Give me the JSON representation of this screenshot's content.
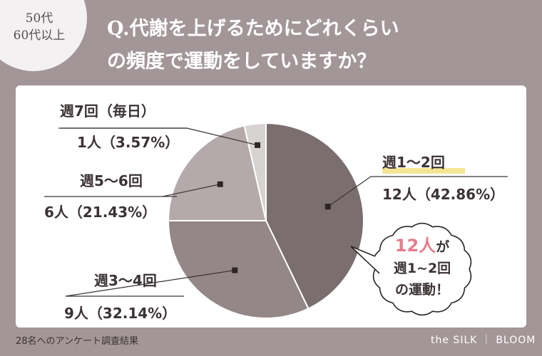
{
  "badge": {
    "line1": "50代",
    "line2": "60代以上"
  },
  "title": {
    "line1": "Q.代謝を上げるためにどれくらい",
    "line2": "の頻度で運動をしていますか？"
  },
  "chart_data": {
    "type": "pie",
    "slices": [
      {
        "name": "週1〜2回",
        "count_label": "12人（42.86%）",
        "value": 42.86,
        "color": "#7a6e6f"
      },
      {
        "name": "週3〜4回",
        "count_label": "9人（32.14%）",
        "value": 32.14,
        "color": "#948788"
      },
      {
        "name": "週5〜6回",
        "count_label": "6人（21.43%）",
        "value": 21.43,
        "color": "#b4aaab"
      },
      {
        "name": "週7回（毎日）",
        "count_label": "1人（3.57%）",
        "value": 3.57,
        "color": "#d8d3d3"
      }
    ],
    "callout": {
      "accent": "12人",
      "accent_suffix": "が",
      "line2": "週1~2回",
      "line3": "の運動！"
    }
  },
  "footer": {
    "note": "28名へのアンケート調査結果",
    "brand": "the SILK ｜ BLOOM"
  },
  "colors": {
    "background": "#a39698",
    "card": "#ffffff",
    "highlight": "#f3e28a",
    "accent": "#e57d8d"
  }
}
